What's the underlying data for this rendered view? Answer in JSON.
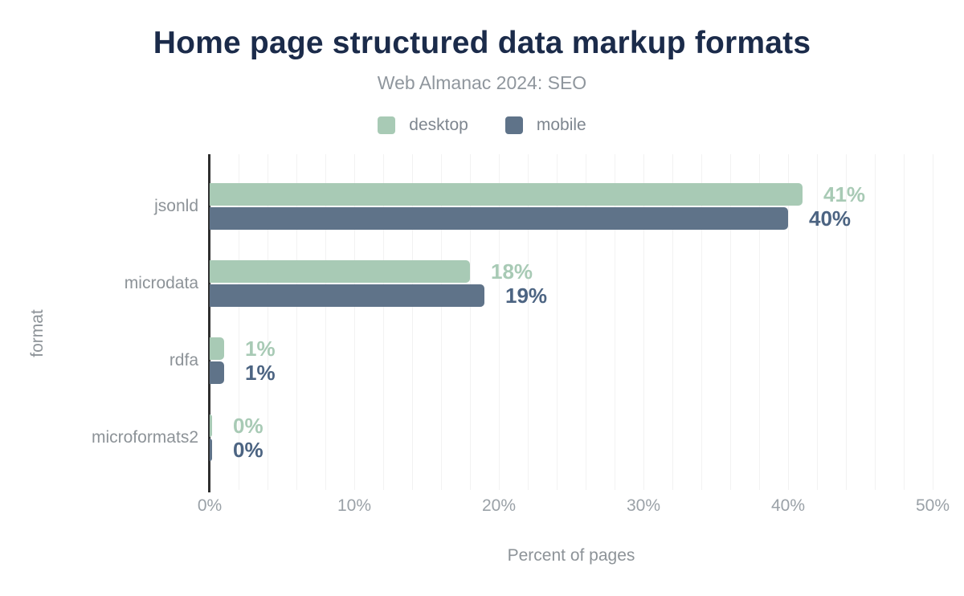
{
  "title": "Home page structured data markup formats",
  "subtitle": "Web Almanac 2024: SEO",
  "legend": [
    {
      "label": "desktop",
      "color": "#a8cab5"
    },
    {
      "label": "mobile",
      "color": "#5f7389"
    }
  ],
  "chart_data": {
    "type": "bar",
    "orientation": "horizontal",
    "title": "Home page structured data markup formats",
    "subtitle": "Web Almanac 2024: SEO",
    "categories": [
      "jsonld",
      "microdata",
      "rdfa",
      "microformats2"
    ],
    "series": [
      {
        "name": "desktop",
        "color": "#a8cab5",
        "label_color": "#a8cab5",
        "values": [
          41,
          18,
          1,
          0
        ]
      },
      {
        "name": "mobile",
        "color": "#5f7389",
        "label_color": "#4c6482",
        "values": [
          40,
          19,
          1,
          0
        ]
      }
    ],
    "value_suffix": "%",
    "xlabel": "Percent of pages",
    "ylabel": "format",
    "xlim": [
      0,
      50
    ],
    "xticks": [
      "0%",
      "10%",
      "20%",
      "30%",
      "40%",
      "50%"
    ],
    "grid": "vertical minor gridlines every 2%",
    "legend_position": "top center"
  },
  "colors": {
    "background": "#ffffff",
    "title": "#1b2b4a",
    "subtitle": "#8f969d",
    "axis_line": "#2f2f2f",
    "gridline": "#f2f2f2",
    "tick_text": "#9aa1a7",
    "category_text": "#8d9398"
  }
}
